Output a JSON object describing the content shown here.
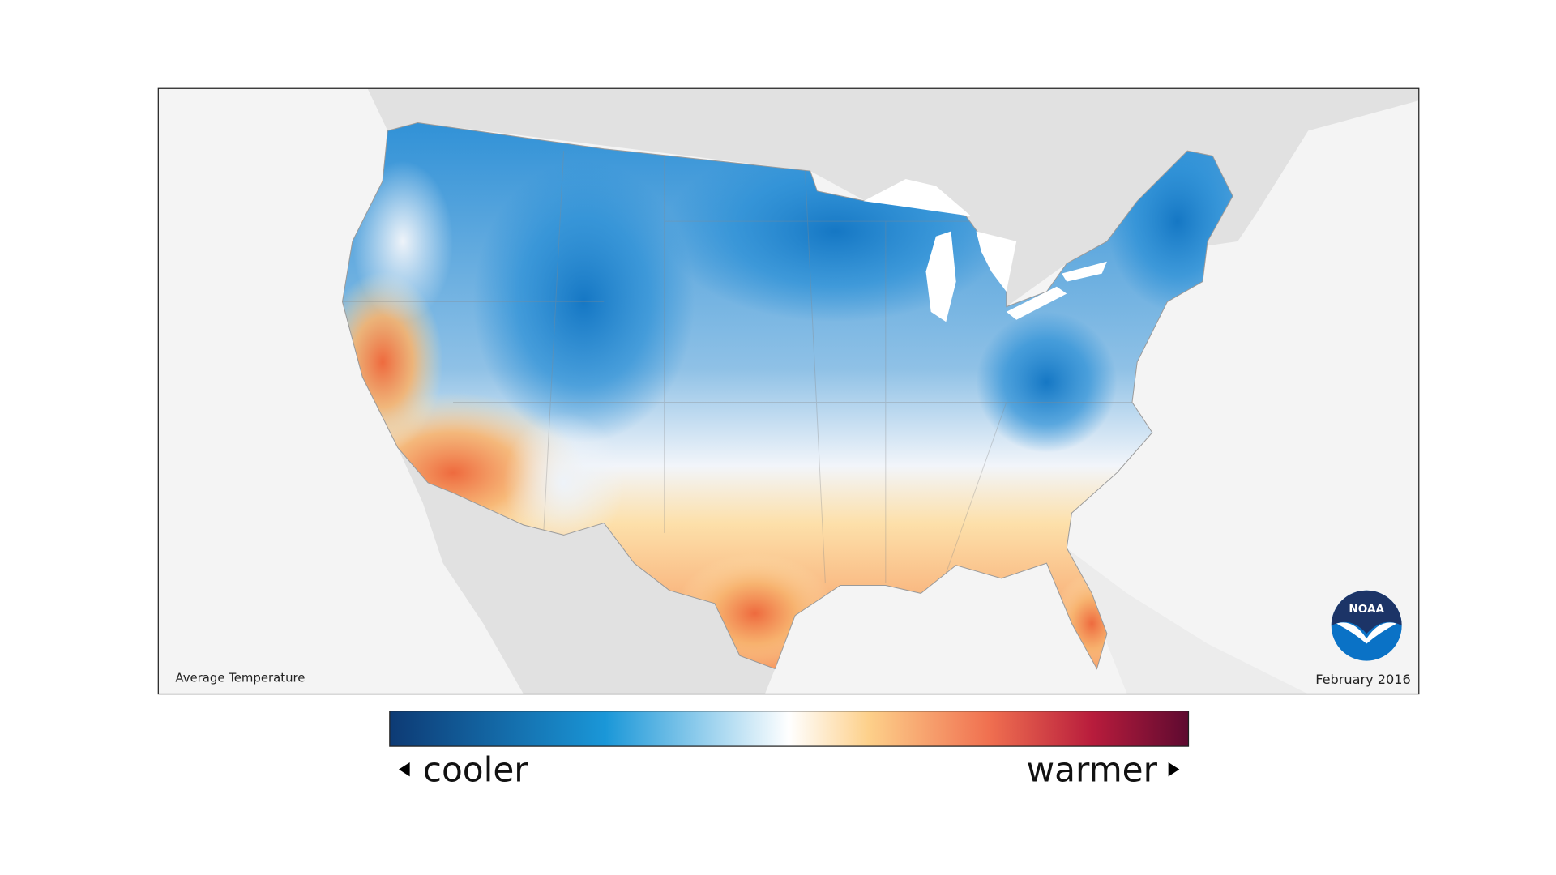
{
  "map": {
    "title": "Average Temperature",
    "date": "February 2016",
    "logo": "NOAA"
  },
  "legend": {
    "low": "cooler",
    "high": "warmer"
  }
}
